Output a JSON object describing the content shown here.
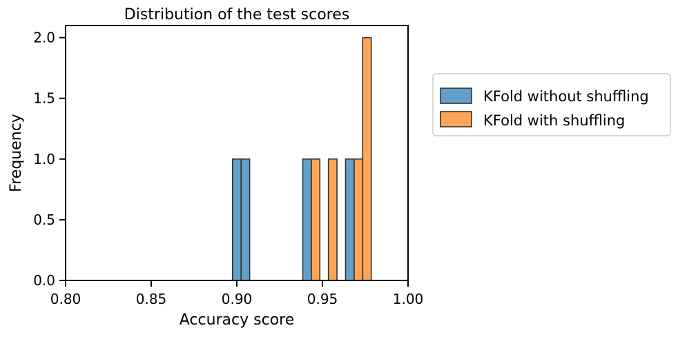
{
  "chart_data": {
    "type": "bar",
    "title": "Distribution of the test scores",
    "xlabel": "Accuracy score",
    "ylabel": "Frequency",
    "xlim": [
      0.8,
      1.0
    ],
    "ylim": [
      0.0,
      2.1
    ],
    "x_ticks": [
      "0.80",
      "0.85",
      "0.90",
      "0.95",
      "1.00"
    ],
    "y_ticks": [
      "0.0",
      "0.5",
      "1.0",
      "1.5",
      "2.0"
    ],
    "bin_width": 0.005,
    "legend_position": "outside-right",
    "series": [
      {
        "name": "KFold without shuffling",
        "color": "#1f77b4",
        "bins": [
          {
            "start": 0.8975,
            "count": 1
          },
          {
            "start": 0.9025,
            "count": 1
          },
          {
            "start": 0.9385,
            "count": 1
          },
          {
            "start": 0.9635,
            "count": 1
          }
        ]
      },
      {
        "name": "KFold with shuffling",
        "color": "#ff7f0e",
        "bins": [
          {
            "start": 0.9435,
            "count": 1
          },
          {
            "start": 0.9535,
            "count": 1
          },
          {
            "start": 0.9685,
            "count": 1
          },
          {
            "start": 0.9735,
            "count": 2
          }
        ]
      }
    ],
    "grid": false
  }
}
